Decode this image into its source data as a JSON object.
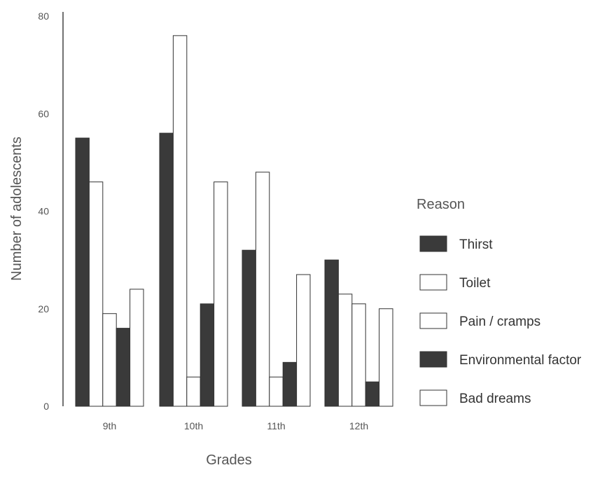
{
  "chart_data": {
    "type": "bar",
    "categories": [
      "9th",
      "10th",
      "11th",
      "12th"
    ],
    "series": [
      {
        "name": "Thirst",
        "values": [
          55,
          56,
          32,
          30
        ],
        "fill": "#3a3a3a"
      },
      {
        "name": "Toilet",
        "values": [
          46,
          76,
          48,
          23
        ],
        "fill": "#ffffff"
      },
      {
        "name": "Pain / cramps",
        "values": [
          19,
          6,
          6,
          21
        ],
        "fill": "#ffffff"
      },
      {
        "name": "Environmental factor",
        "values": [
          16,
          21,
          9,
          5
        ],
        "fill": "#3a3a3a"
      },
      {
        "name": "Bad dreams",
        "values": [
          24,
          46,
          27,
          20
        ],
        "fill": "#ffffff"
      }
    ],
    "xlabel": "Grades",
    "ylabel": "Number of adolescents",
    "ylim": [
      0,
      80
    ],
    "yticks": [
      "0",
      "20",
      "40",
      "60",
      "80"
    ],
    "legend_title": "Reason",
    "legend_position": "right",
    "grid": false
  },
  "colors": {
    "dark": "#3a3a3a",
    "outline": "#333333",
    "axis": "#444444"
  }
}
